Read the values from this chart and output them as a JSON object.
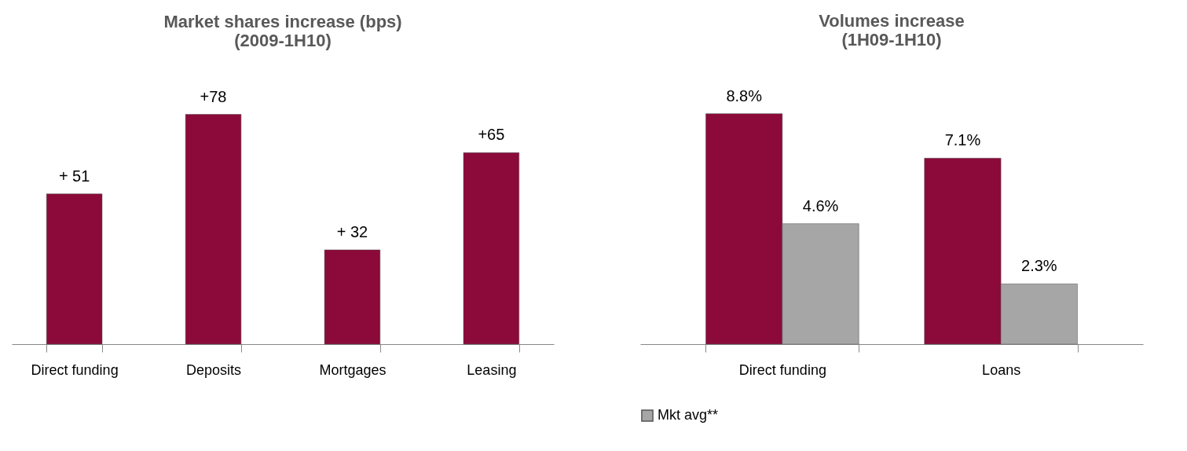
{
  "chart_data": [
    {
      "type": "bar",
      "title": "Market shares increase (bps)\n(2009-1H10)",
      "categories": [
        "Direct funding",
        "Deposits",
        "Mortgages",
        "Leasing"
      ],
      "series": [
        {
          "color": "#8b0a3a",
          "values": [
            51,
            78,
            32,
            65
          ],
          "value_labels": [
            "+ 51",
            "+78",
            "+ 32",
            "+65"
          ]
        }
      ],
      "legend": false
    },
    {
      "type": "bar",
      "title": "Volumes increase\n(1H09-1H10)",
      "categories": [
        "Direct funding",
        "Loans"
      ],
      "series": [
        {
          "color": "#8b0a3a",
          "values": [
            8.8,
            7.1
          ],
          "value_labels": [
            "8.8%",
            "7.1%"
          ]
        },
        {
          "name": "Mkt avg**",
          "color": "#a6a6a6",
          "values": [
            4.6,
            2.3
          ],
          "value_labels": [
            "4.6%",
            "2.3%"
          ]
        }
      ],
      "legend": "bottom"
    }
  ]
}
